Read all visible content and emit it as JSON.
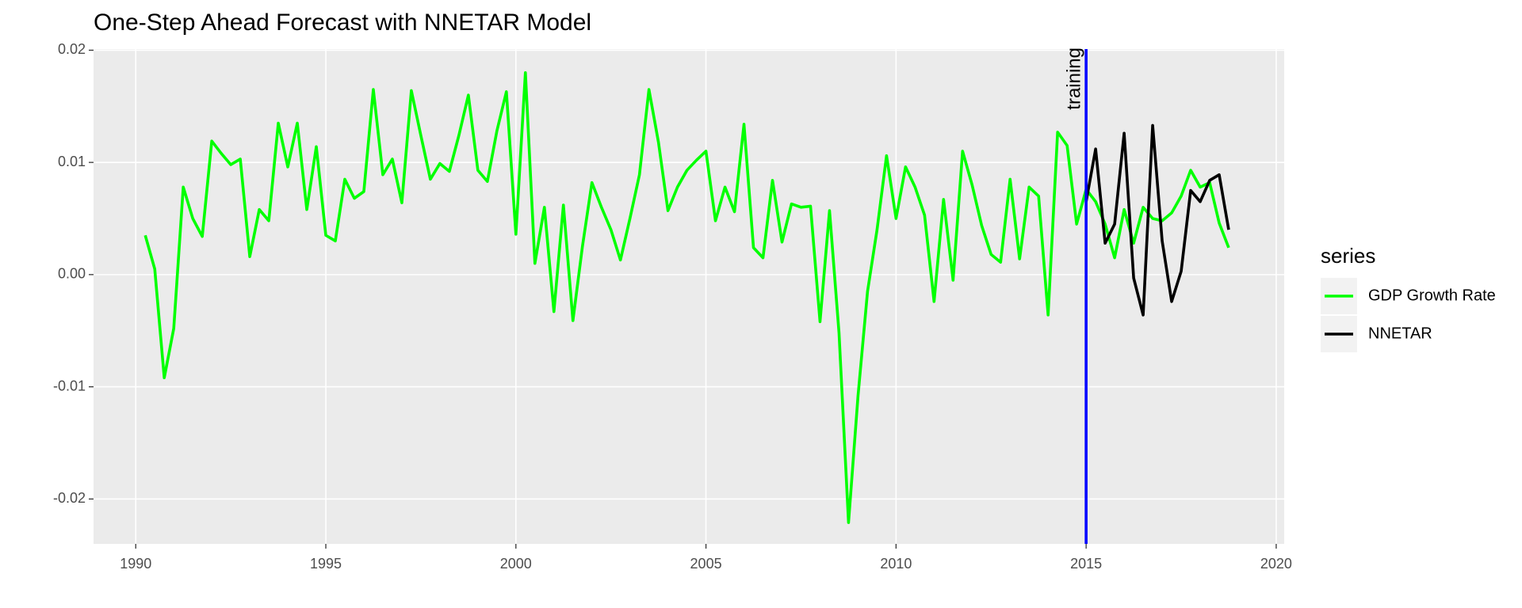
{
  "chart_data": {
    "type": "line",
    "title": "One-Step Ahead Forecast with NNETAR Model",
    "legend_title": "series",
    "legend": "right",
    "grid": true,
    "xlim": [
      1988.89,
      2020.21
    ],
    "xticks": [
      1990,
      1995,
      2000,
      2005,
      2010,
      2015,
      2020
    ],
    "ylim": [
      -0.024,
      0.0201
    ],
    "yticks": [
      {
        "value": -0.02,
        "label": "-0.02"
      },
      {
        "value": -0.01,
        "label": "-0.01"
      },
      {
        "value": 0,
        "label": "0.00"
      },
      {
        "value": 0.01,
        "label": "0.01"
      },
      {
        "value": 0.02,
        "label": "0.02"
      }
    ],
    "vline": {
      "x": 2015,
      "color": "#0000ff",
      "label": "training"
    },
    "series": [
      {
        "name": "GDP Growth Rate",
        "color": "#00ff00",
        "x": [
          1990.25,
          1990.5,
          1990.75,
          1991,
          1991.25,
          1991.5,
          1991.75,
          1992,
          1992.25,
          1992.5,
          1992.75,
          1993,
          1993.25,
          1993.5,
          1993.75,
          1994,
          1994.25,
          1994.5,
          1994.75,
          1995,
          1995.25,
          1995.5,
          1995.75,
          1996,
          1996.25,
          1996.5,
          1996.75,
          1997,
          1997.25,
          1997.5,
          1997.75,
          1998,
          1998.25,
          1998.5,
          1998.75,
          1999,
          1999.25,
          1999.5,
          1999.75,
          2000,
          2000.25,
          2000.5,
          2000.75,
          2001,
          2001.25,
          2001.5,
          2001.75,
          2002,
          2002.25,
          2002.5,
          2002.75,
          2003,
          2003.25,
          2003.5,
          2003.75,
          2004,
          2004.25,
          2004.5,
          2004.75,
          2005,
          2005.25,
          2005.5,
          2005.75,
          2006,
          2006.25,
          2006.5,
          2006.75,
          2007,
          2007.25,
          2007.5,
          2007.75,
          2008,
          2008.25,
          2008.5,
          2008.75,
          2009,
          2009.25,
          2009.5,
          2009.75,
          2010,
          2010.25,
          2010.5,
          2010.75,
          2011,
          2011.25,
          2011.5,
          2011.75,
          2012,
          2012.25,
          2012.5,
          2012.75,
          2013,
          2013.25,
          2013.5,
          2013.75,
          2014,
          2014.25,
          2014.5,
          2014.75,
          2015,
          2015.25,
          2015.5,
          2015.75,
          2016,
          2016.25,
          2016.5,
          2016.75,
          2017,
          2017.25,
          2017.5,
          2017.75,
          2018,
          2018.25,
          2018.5,
          2018.75
        ],
        "values": [
          0.0035,
          0.0005,
          -0.0092,
          -0.0048,
          0.0078,
          0.005,
          0.0034,
          0.0119,
          0.0108,
          0.0098,
          0.0103,
          0.0016,
          0.0058,
          0.0048,
          0.0135,
          0.0096,
          0.0135,
          0.0058,
          0.0114,
          0.0035,
          0.003,
          0.0085,
          0.0068,
          0.0074,
          0.0165,
          0.0089,
          0.0103,
          0.0064,
          0.0164,
          0.0124,
          0.0085,
          0.0099,
          0.0092,
          0.0124,
          0.016,
          0.0093,
          0.0083,
          0.0128,
          0.0163,
          0.0036,
          0.018,
          0.001,
          0.006,
          -0.0033,
          0.0062,
          -0.0041,
          0.0025,
          0.0082,
          0.006,
          0.004,
          0.0013,
          0.005,
          0.0089,
          0.0165,
          0.0118,
          0.0057,
          0.0078,
          0.0093,
          0.0102,
          0.011,
          0.0048,
          0.0078,
          0.0056,
          0.0134,
          0.0024,
          0.0015,
          0.0084,
          0.0029,
          0.0063,
          0.006,
          0.0061,
          -0.0042,
          0.0057,
          -0.0052,
          -0.0221,
          -0.0108,
          -0.0015,
          0.004,
          0.0106,
          0.005,
          0.0096,
          0.0078,
          0.0053,
          -0.0024,
          0.0067,
          -0.0005,
          0.011,
          0.008,
          0.0044,
          0.0018,
          0.0011,
          0.0085,
          0.0014,
          0.0078,
          0.007,
          -0.0036,
          0.0127,
          0.0115,
          0.0045,
          0.0076,
          0.0065,
          0.0045,
          0.0015,
          0.0058,
          0.0028,
          0.006,
          0.005,
          0.0048,
          0.0055,
          0.007,
          0.0093,
          0.0078,
          0.0082,
          0.0046,
          0.0024
        ]
      },
      {
        "name": "NNETAR",
        "color": "#000000",
        "x": [
          2015,
          2015.25,
          2015.5,
          2015.75,
          2016,
          2016.25,
          2016.5,
          2016.75,
          2017,
          2017.25,
          2017.5,
          2017.75,
          2018,
          2018.25,
          2018.5,
          2018.75
        ],
        "values": [
          0.0065,
          0.0112,
          0.0028,
          0.0045,
          0.0126,
          -0.0003,
          -0.0036,
          0.0133,
          0.003,
          -0.0024,
          0.0003,
          0.0075,
          0.0065,
          0.0084,
          0.0089,
          0.004
        ]
      }
    ]
  }
}
